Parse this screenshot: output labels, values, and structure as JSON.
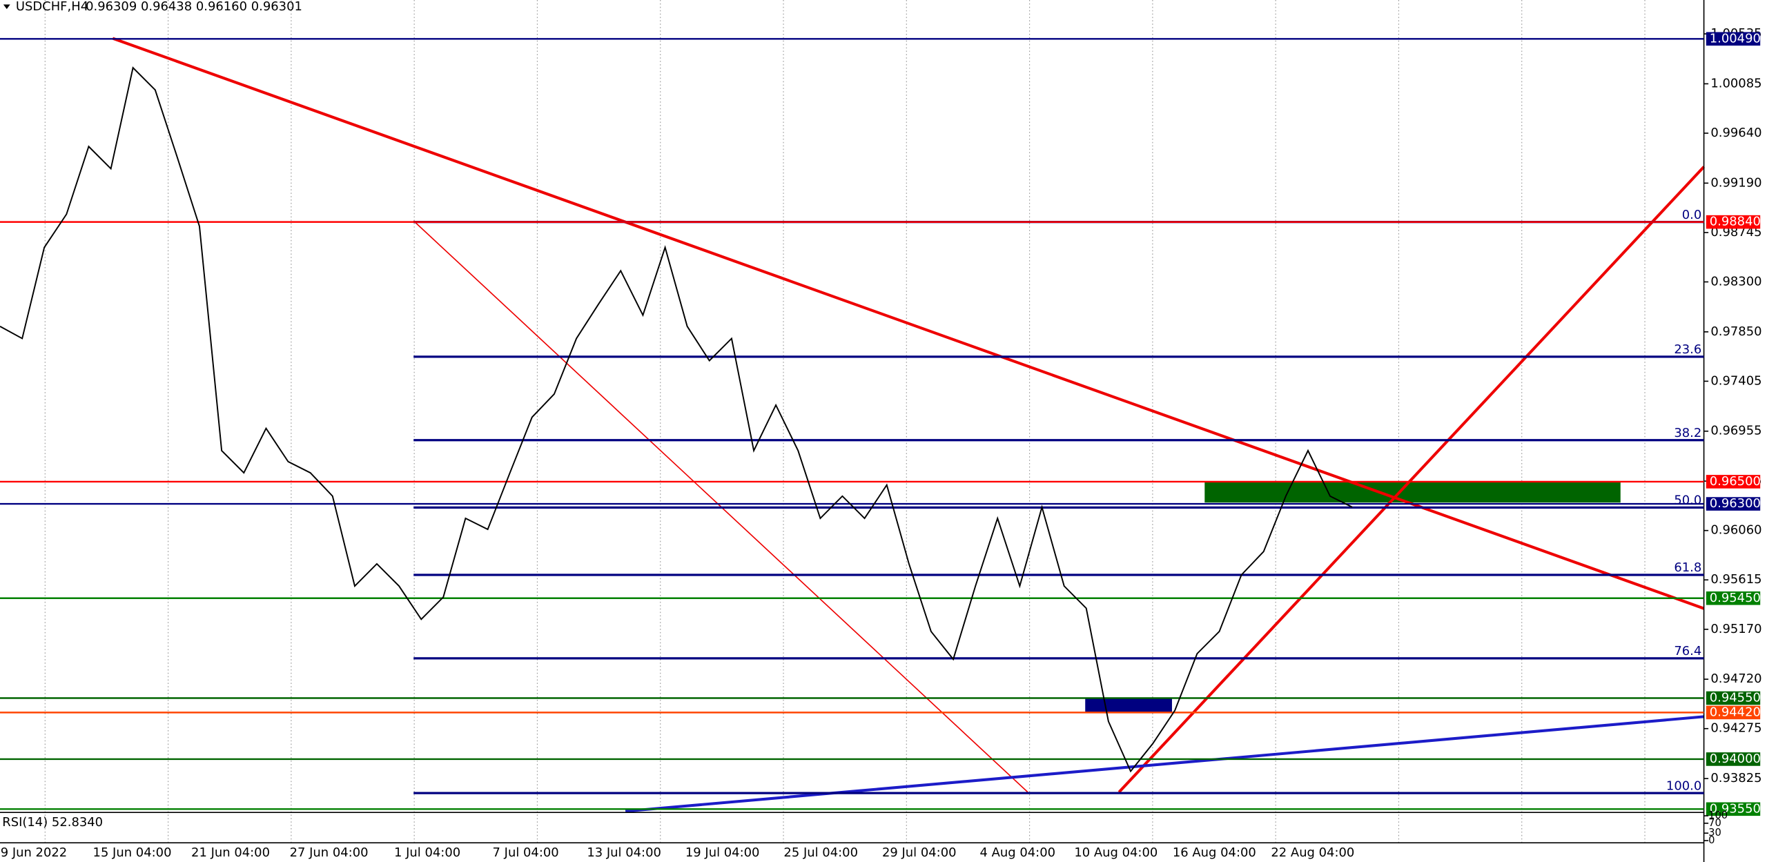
{
  "header": {
    "symbol": "USDCHF,H4",
    "quote": "0.96309 0.96438 0.96160 0.96301"
  },
  "chart": {
    "type": "line",
    "ylim": [
      0.9353,
      1.0084
    ],
    "yticks": [
      {
        "value": 1.00535,
        "label": "1.00535"
      },
      {
        "value": 1.00085,
        "label": "1.00085"
      },
      {
        "value": 0.9964,
        "label": "0.99640"
      },
      {
        "value": 0.9919,
        "label": "0.99190"
      },
      {
        "value": 0.98745,
        "label": "0.98745"
      },
      {
        "value": 0.983,
        "label": "0.98300"
      },
      {
        "value": 0.9785,
        "label": "0.97850"
      },
      {
        "value": 0.97405,
        "label": "0.97405"
      },
      {
        "value": 0.96955,
        "label": "0.96955"
      },
      {
        "value": 0.96505,
        "label": "0.96505"
      },
      {
        "value": 0.9606,
        "label": "0.96060"
      },
      {
        "value": 0.95615,
        "label": "0.95615"
      },
      {
        "value": 0.9517,
        "label": "0.95170"
      },
      {
        "value": 0.9472,
        "label": "0.94720"
      },
      {
        "value": 0.94275,
        "label": "0.94275"
      },
      {
        "value": 0.93825,
        "label": "0.93825"
      }
    ],
    "categories": [
      "9 Jun 2022",
      "15 Jun 04:00",
      "21 Jun 04:00",
      "27 Jun 04:00",
      "1 Jul 04:00",
      "7 Jul 04:00",
      "13 Jul 04:00",
      "19 Jul 04:00",
      "25 Jul 04:00",
      "29 Jul 04:00",
      "4 Aug 04:00",
      "10 Aug 04:00",
      "16 Aug 04:00",
      "22 Aug 04:00"
    ],
    "series": [
      {
        "name": "USDCHF",
        "color": "#000000",
        "values": [
          0.979,
          0.9779,
          0.9861,
          0.9891,
          0.9952,
          0.9932,
          1.0023,
          1.0003,
          0.9942,
          0.988,
          0.9678,
          0.9658,
          0.9698,
          0.9668,
          0.9658,
          0.9637,
          0.9556,
          0.9576,
          0.9556,
          0.9526,
          0.9546,
          0.9617,
          0.9607,
          0.9658,
          0.9708,
          0.9729,
          0.9779,
          0.981,
          0.984,
          0.98,
          0.9861,
          0.979,
          0.9759,
          0.9779,
          0.9678,
          0.9719,
          0.9678,
          0.9617,
          0.9637,
          0.9617,
          0.9647,
          0.9576,
          0.9515,
          0.949,
          0.9556,
          0.9617,
          0.9556,
          0.9627,
          0.9556,
          0.9536,
          0.9434,
          0.9389,
          0.9414,
          0.9444,
          0.9495,
          0.9515,
          0.9566,
          0.9587,
          0.9637,
          0.9678,
          0.9637,
          0.9627
        ]
      }
    ],
    "levels": [
      {
        "price": {
          "value": 1.0049,
          "label": "1.00490"
        },
        "color": "#000080"
      },
      {
        "price": {
          "value": 0.9884,
          "label": "0.98840"
        },
        "color": "#ff0000"
      },
      {
        "price": {
          "value": 0.965,
          "label": "0.96500"
        },
        "color": "#ff0000"
      },
      {
        "price": {
          "value": 0.963,
          "label": "0.96300"
        },
        "color": "#000080"
      },
      {
        "price": {
          "value": 0.9545,
          "label": "0.95450"
        },
        "color": "#008000"
      },
      {
        "price": {
          "value": 0.9455,
          "label": "0.94550"
        },
        "color": "#006400"
      },
      {
        "price": {
          "value": 0.9442,
          "label": "0.94420"
        },
        "color": "#ff4500"
      },
      {
        "price": {
          "value": 0.94,
          "label": "0.94000"
        },
        "color": "#006400"
      },
      {
        "price": {
          "value": 0.9355,
          "label": "0.93550"
        },
        "color": "#008000"
      }
    ],
    "fib": {
      "high": 0.9884,
      "low": 0.93694,
      "color": "#000080",
      "levels": [
        {
          "value": 0,
          "label": "0.0"
        },
        23.6,
        38.2,
        {
          "value": 50,
          "label": "50.0"
        },
        61.8,
        76.4,
        {
          "value": 100,
          "label": "100.0"
        }
      ]
    },
    "rsi": {
      "label": "RSI(14) 52.8340",
      "ylim": [
        0,
        100
      ],
      "yticks": [
        100,
        70,
        30,
        0
      ]
    }
  }
}
